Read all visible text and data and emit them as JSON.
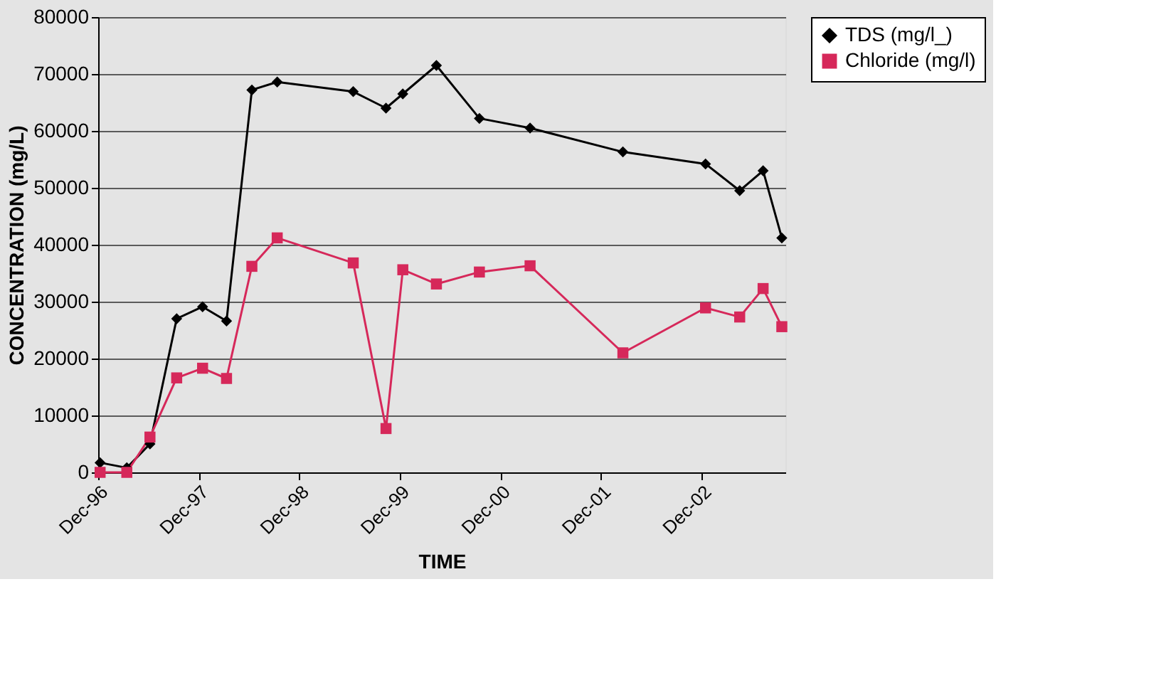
{
  "chart_data": {
    "type": "line",
    "xlabel": "TIME",
    "ylabel": "CONCENTRATION (mg/L)",
    "x": [
      "1996-12-08",
      "1997-03-15",
      "1997-06-07",
      "1997-09-12",
      "1997-12-15",
      "1998-03-12",
      "1998-06-12",
      "1998-09-12",
      "1999-06-15",
      "1999-10-12",
      "1999-12-12",
      "2000-04-12",
      "2000-09-15",
      "2001-03-18",
      "2002-02-18",
      "2002-12-15",
      "2003-04-18",
      "2003-07-12",
      "2003-09-18"
    ],
    "series": [
      {
        "name": "TDS (mg/l_)",
        "color": "#000000",
        "marker": "diamond",
        "values": [
          1700,
          800,
          5000,
          27000,
          29100,
          26600,
          67200,
          68600,
          66900,
          64000,
          66500,
          71500,
          62200,
          60500,
          56300,
          54200,
          49500,
          53000,
          41200
        ]
      },
      {
        "name": "Chloride (mg/l)",
        "color": "#d6285a",
        "marker": "square",
        "values": [
          0,
          0,
          6200,
          16600,
          18300,
          16500,
          36200,
          41200,
          36800,
          7700,
          35600,
          33100,
          35200,
          36300,
          21000,
          28900,
          27300,
          32300,
          25600
        ]
      }
    ],
    "xlim": [
      "1996-12-01",
      "2003-10-01"
    ],
    "xticks": [
      {
        "value": "1996-12-01",
        "label": "Dec-96"
      },
      {
        "value": "1997-12-01",
        "label": "Dec-97"
      },
      {
        "value": "1998-12-01",
        "label": "Dec-98"
      },
      {
        "value": "1999-12-01",
        "label": "Dec-99"
      },
      {
        "value": "2000-12-01",
        "label": "Dec-00"
      },
      {
        "value": "2001-12-01",
        "label": "Dec-01"
      },
      {
        "value": "2002-12-01",
        "label": "Dec-02"
      }
    ],
    "ylim": [
      0,
      80000
    ],
    "yticks": [
      0,
      10000,
      20000,
      30000,
      40000,
      50000,
      60000,
      70000,
      80000
    ],
    "grid": "y",
    "legend": "right",
    "line_style": "solid"
  }
}
